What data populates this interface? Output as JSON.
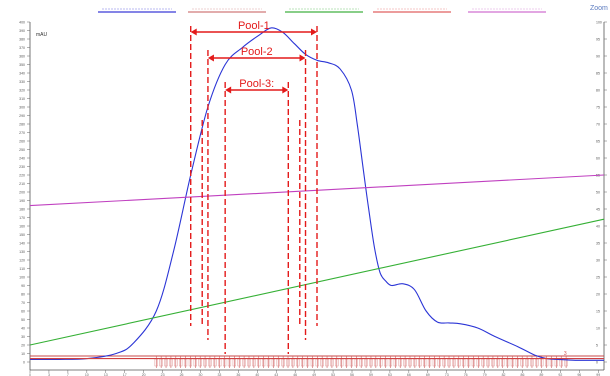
{
  "window": {
    "corner_label": "Zoom"
  },
  "chart_data": {
    "type": "line",
    "title": "",
    "xlabel": "",
    "ylabel": "",
    "ylabel_unit_left": "mAU",
    "grid": false,
    "legend_placement": "top",
    "legend_entries": [
      "",
      "",
      "",
      "",
      ""
    ],
    "legend_colors": [
      "#3a3ad6",
      "#d07a7a",
      "#40b040",
      "#e06060",
      "#d070d0"
    ],
    "xlim": [
      0,
      100
    ],
    "ylim_left": [
      0,
      400
    ],
    "ylim_right": [
      0,
      100
    ],
    "series": [
      {
        "color": "#2b35d6",
        "axis": "left",
        "x": [
          0,
          5,
          10,
          15,
          18,
          22,
          25,
          28,
          31,
          34,
          37,
          40,
          42,
          44,
          46,
          48,
          50,
          52,
          54,
          56,
          57,
          58,
          59,
          60,
          61,
          62,
          63,
          65,
          67,
          69,
          71,
          73,
          75,
          78,
          81,
          85,
          88,
          90,
          92,
          95,
          98,
          100
        ],
        "y": [
          3,
          3,
          4,
          10,
          22,
          60,
          130,
          220,
          300,
          350,
          370,
          385,
          393,
          388,
          375,
          362,
          355,
          352,
          345,
          320,
          280,
          230,
          180,
          135,
          105,
          95,
          90,
          92,
          85,
          60,
          47,
          46,
          45,
          40,
          30,
          18,
          8,
          4,
          3,
          2,
          2,
          2
        ]
      },
      {
        "color": "#35b035",
        "axis": "right",
        "x": [
          0,
          100
        ],
        "y": [
          5,
          42
        ]
      },
      {
        "color": "#c040c0",
        "axis": "right",
        "x": [
          0,
          100
        ],
        "y": [
          46,
          55
        ]
      },
      {
        "color": "#d04040",
        "axis": "right",
        "x": [
          0,
          100
        ],
        "y": [
          1,
          1
        ]
      }
    ],
    "annotations": [
      {
        "label": "Pool-1",
        "x_start": 28,
        "x_end": 50
      },
      {
        "label": "Pool-2",
        "x_start": 31,
        "x_end": 48
      },
      {
        "label": "Pool-3:",
        "x_start": 34,
        "x_end": 45
      }
    ],
    "extra_left_markers_x": [
      30,
      47
    ],
    "fraction_marker_label": "3"
  }
}
